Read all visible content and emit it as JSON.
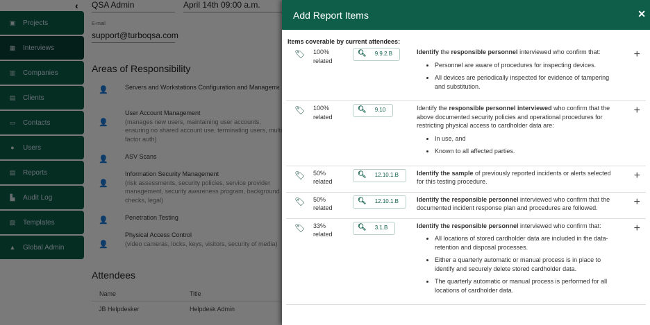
{
  "sidebar": {
    "items": [
      {
        "label": "Projects",
        "icon": "briefcase-icon",
        "glyph": "▣"
      },
      {
        "label": "Interviews",
        "icon": "calendar-icon",
        "glyph": "▦",
        "active": true
      },
      {
        "label": "Companies",
        "icon": "building-icon",
        "glyph": "▥"
      },
      {
        "label": "Clients",
        "icon": "address-book-icon",
        "glyph": "▤"
      },
      {
        "label": "Contacts",
        "icon": "id-card-icon",
        "glyph": "▭"
      },
      {
        "label": "Users",
        "icon": "users-icon",
        "glyph": "●"
      },
      {
        "label": "Reports",
        "icon": "book-icon",
        "glyph": "▤"
      },
      {
        "label": "Audit Log",
        "icon": "scroll-icon",
        "glyph": "▙"
      },
      {
        "label": "Templates",
        "icon": "word-file-icon",
        "glyph": "▧"
      },
      {
        "label": "Global Admin",
        "icon": "flask-icon",
        "glyph": "▲"
      }
    ]
  },
  "form": {
    "role": "QSA Admin",
    "date": "April 14th 09:00 a.m.",
    "email_label": "E-mail",
    "email": "support@turboqsa.com"
  },
  "areas": {
    "title": "Areas of Responsibility",
    "items": [
      {
        "title": "Servers and Workstations Configuration and Management",
        "sub": ""
      },
      {
        "title": "User Account Management",
        "sub": "(manages new users, maintaining user accounts, ensuring no shared account use, terminating users, multi-factor auth)"
      },
      {
        "title": "ASV Scans",
        "sub": ""
      },
      {
        "title": "Information Security Management",
        "sub": "(risk assessments, security policies, service provider management, security awareness program, background checks, legal)"
      },
      {
        "title": "Penetration Testing",
        "sub": ""
      },
      {
        "title": "Physical Access Control",
        "sub": "(video cameras, locks, keys, visitors, security of media)"
      }
    ]
  },
  "attendees": {
    "title": "Attendees",
    "col_name": "Name",
    "col_title": "Title",
    "rows": [
      {
        "name": "JB Helpdesker",
        "title": "Helpdesk Admin"
      }
    ]
  },
  "panel": {
    "title": "Add Report Items",
    "subtitle": "Items coverable by current attendees:",
    "items": [
      {
        "pct": "100%",
        "related": "related",
        "ref": "9.9.2.B",
        "html": "<b>Identify</b> the <b>responsible personnel</b> interviewed who confirm that:",
        "bullets": [
          "Personnel are aware of procedures for inspecting devices.",
          "All devices are periodically inspected for evidence of tampering and substitution."
        ]
      },
      {
        "pct": "100%",
        "related": "related",
        "ref": "9.10",
        "html": "Identify the <b>responsible personnel interviewed</b> who confirm that the above documented security policies and operational procedures for restricting physical access to cardholder data are:",
        "bullets": [
          "In use, and",
          "Known to all affected parties."
        ]
      },
      {
        "pct": "50%",
        "related": "related",
        "ref": "12.10.1.B",
        "html": "<b>Identify the sample</b> of previously reported incidents or alerts selected for this testing procedure.",
        "bullets": []
      },
      {
        "pct": "50%",
        "related": "related",
        "ref": "12.10.1.B",
        "html": "<b>Identify the responsible personnel</b> interviewed who confirm that the documented incident response plan and procedures are followed.",
        "bullets": []
      },
      {
        "pct": "33%",
        "related": "related",
        "ref": "3.1.B",
        "html": "<b>Identify the responsible personnel</b> interviewed who confirm that:",
        "bullets": [
          "All locations of stored cardholder data are included in the data-retention and disposal processes.",
          "Either a quarterly automatic or manual process is in place to identify and securely delete stored cardholder data.",
          "The quarterly automatic or manual process is performed for all locations of cardholder data."
        ]
      }
    ]
  }
}
